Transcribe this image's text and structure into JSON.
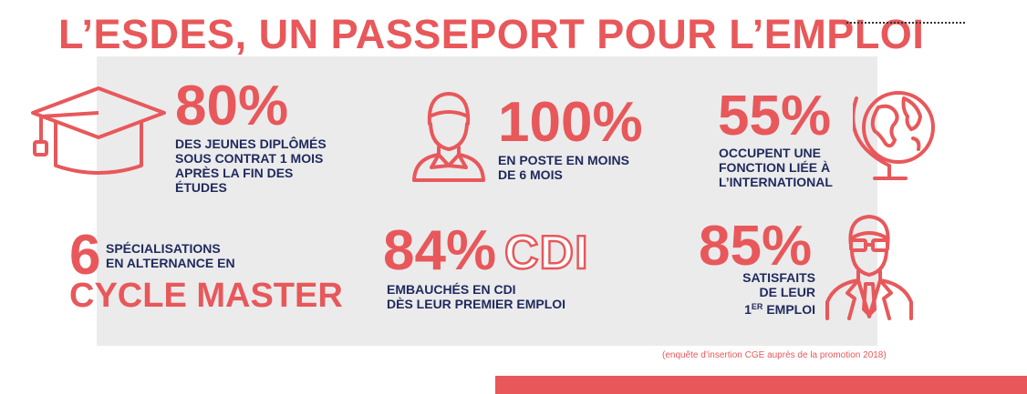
{
  "title": "L’ESDES, UN PASSEPORT POUR L’EMPLOI",
  "stats": {
    "graduates": {
      "value": "80%",
      "text": "DES JEUNES DIPLÔMÉS\nSOUS CONTRAT 1 MOIS\nAPRÈS LA FIN DES\nÉTUDES",
      "icon": "graduation-cap-icon"
    },
    "employed": {
      "value": "100%",
      "text": "EN POSTE EN MOINS\nDE 6 MOIS",
      "icon": "person-icon"
    },
    "international": {
      "value": "55%",
      "text": "OCCUPENT UNE\nFONCTION LIÉE À\nL’INTERNATIONAL",
      "icon": "globe-icon"
    },
    "specializations": {
      "value": "6",
      "text": "SPÉCIALISATIONS\nEN ALTERNANCE EN",
      "cycle": "CYCLE MASTER"
    },
    "cdi": {
      "value": "84%",
      "badge": "CDI",
      "text": "EMBAUCHÉS EN CDI\nDÈS LEUR PREMIER EMPLOI"
    },
    "satisfaction": {
      "value": "85%",
      "line1": "SATISFAITS",
      "line2": "DE LEUR",
      "line3_num": "1",
      "line3_sup": "ER",
      "line3_rest": " EMPLOI",
      "icon": "businessman-icon"
    }
  },
  "source": "(enquête d’insertion CGE auprès de la promotion 2018)",
  "colors": {
    "accent": "#e8585a",
    "navy": "#1f2a5c",
    "panel": "#ebebec"
  }
}
